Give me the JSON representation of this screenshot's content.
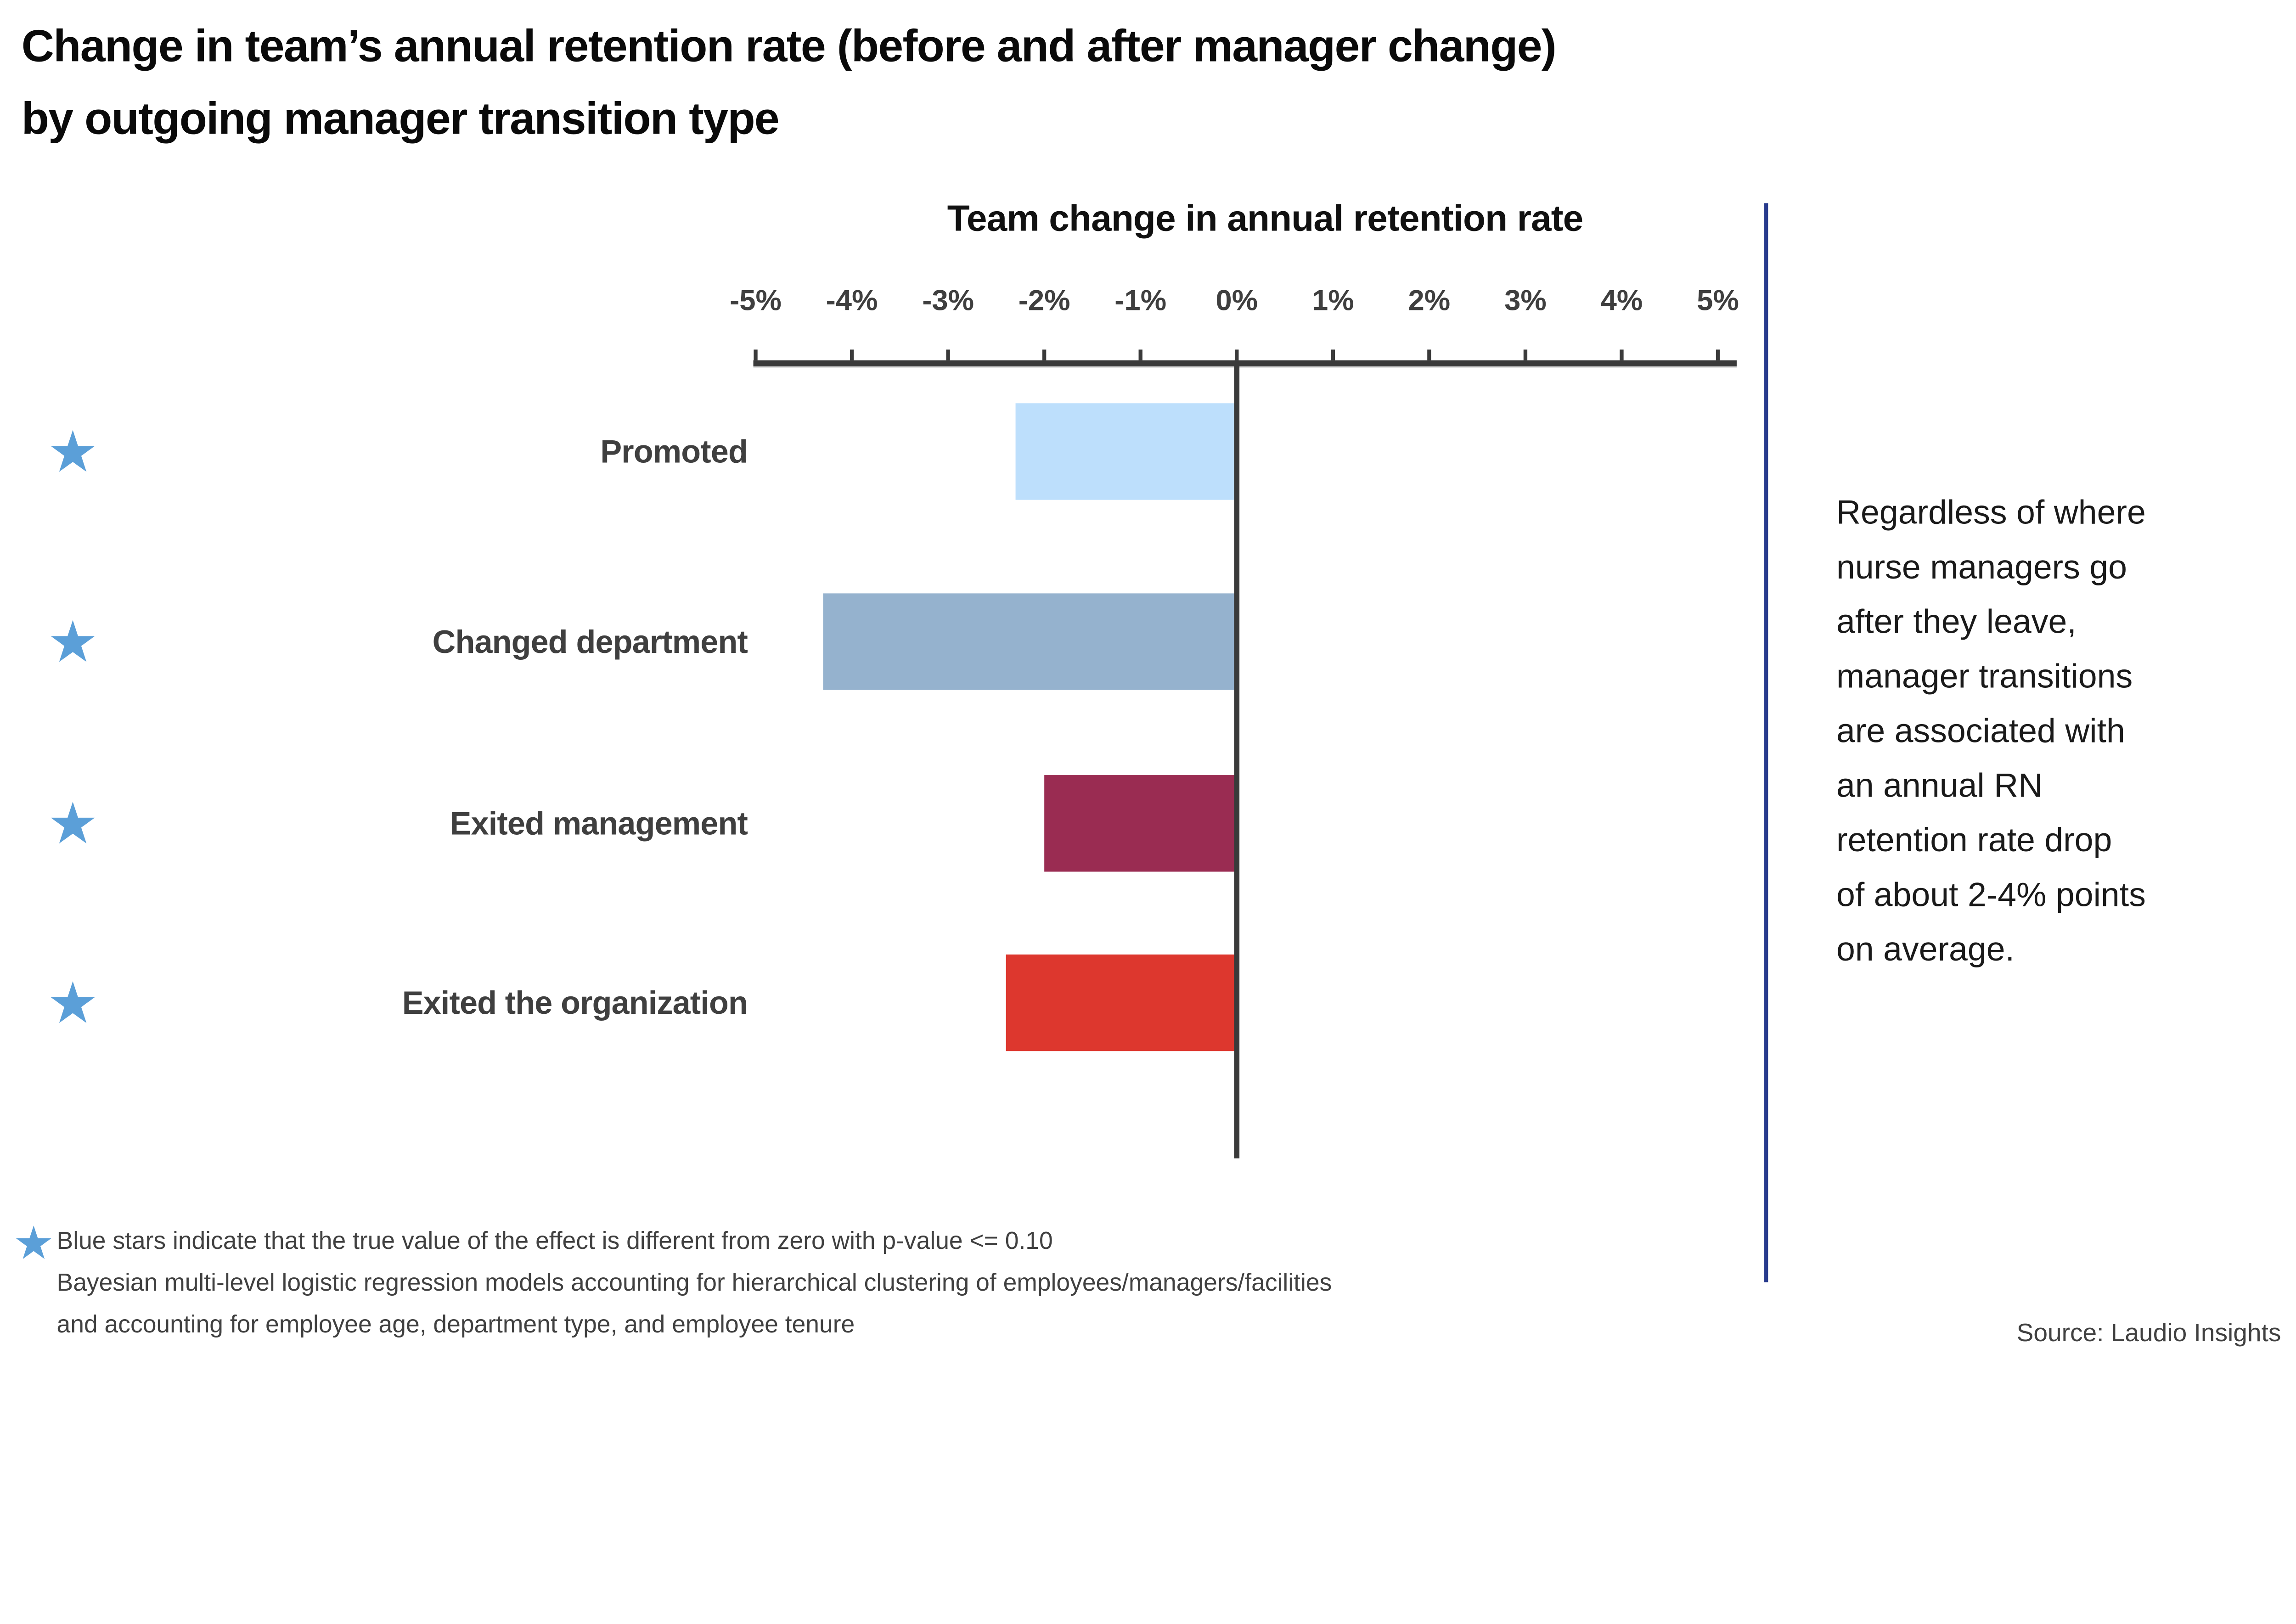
{
  "title": {
    "line1": "Change in team’s annual retention rate (before and after manager change)",
    "line2": "by outgoing manager transition type"
  },
  "chart_data": {
    "type": "bar",
    "orientation": "horizontal",
    "axis_title": "Team change in annual retention rate",
    "xlabel": "Team change in annual retention rate",
    "ylabel": "",
    "xlim": [
      -5,
      5
    ],
    "grid": "off",
    "x_ticks": [
      {
        "value": -5,
        "label": "-5%"
      },
      {
        "value": -4,
        "label": "-4%"
      },
      {
        "value": -3,
        "label": "-3%"
      },
      {
        "value": -2,
        "label": "-2%"
      },
      {
        "value": -1,
        "label": "-1%"
      },
      {
        "value": 0,
        "label": "0%"
      },
      {
        "value": 1,
        "label": "1%"
      },
      {
        "value": 2,
        "label": "2%"
      },
      {
        "value": 3,
        "label": "3%"
      },
      {
        "value": 4,
        "label": "4%"
      },
      {
        "value": 5,
        "label": "5%"
      }
    ],
    "categories": [
      "Promoted",
      "Changed department",
      "Exited management",
      "Exited the organization"
    ],
    "values": [
      -2.3,
      -4.3,
      -2.0,
      -2.4
    ],
    "unit": "% points",
    "bar_colors": [
      "#BDDFFC",
      "#95B2CE",
      "#9A2C52",
      "#DD372E"
    ],
    "significant": [
      true,
      true,
      true,
      true
    ],
    "star_icon": "★",
    "star_color": "#5B9FD8"
  },
  "annotation": {
    "text": "Regardless of where\nnurse managers go\nafter they leave,\nmanager transitions\nare associated with\nan annual RN\nretention rate drop\nof about 2-4% points\non average."
  },
  "footnote": {
    "star_icon": "★",
    "text": "Blue stars indicate that the true value of the effect is different from zero with p-value <= 0.10\nBayesian multi-level logistic regression models accounting for hierarchical clustering of employees/managers/facilities\nand accounting for employee age, department type, and employee tenure"
  },
  "source": {
    "label": "Source: Laudio Insights"
  },
  "colors": {
    "axis": "#3A3A3A",
    "separator": "#283B8D",
    "title_text": "#0A0A0A",
    "label_text": "#3F3F3F",
    "annotation_text": "#1A1A1A"
  }
}
